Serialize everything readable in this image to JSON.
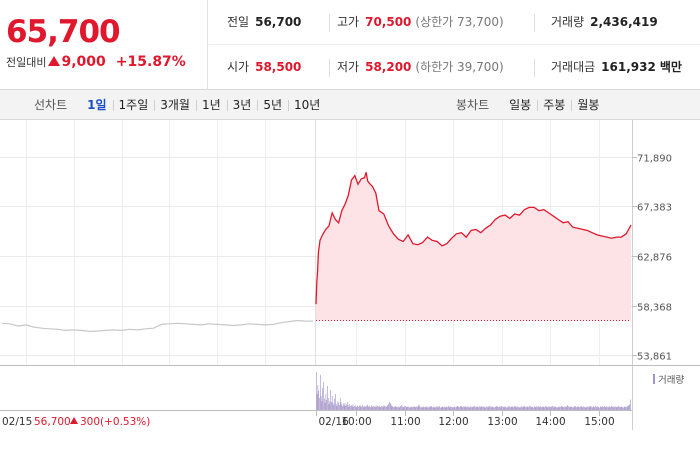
{
  "summary": {
    "current_price": "65,700",
    "change_label": "전일대비",
    "change_amount": "9,000",
    "change_percent": "+15.87%",
    "prev_close_label": "전일",
    "prev_close": "56,700",
    "high_label": "고가",
    "high": "70,500",
    "upper_limit_label": "(상한가 73,700)",
    "volume_label": "거래량",
    "volume": "2,436,419",
    "open_label": "시가",
    "open": "58,500",
    "low_label": "저가",
    "low": "58,200",
    "lower_limit_label": "(하한가 39,700)",
    "value_label": "거래대금",
    "value": "161,932",
    "value_unit": "백만"
  },
  "tabs": {
    "line_label": "선차트",
    "line": [
      "1일",
      "1주일",
      "3개월",
      "1년",
      "3년",
      "5년",
      "10년"
    ],
    "line_active": 0,
    "candle_label": "봉차트",
    "candle": [
      "일봉",
      "주봉",
      "월봉"
    ]
  },
  "colors": {
    "up": "#e0182d",
    "down": "#1a4ec4",
    "prev_day_line": "#c8c8c8",
    "area_fill": "#fde3e5",
    "volume_bar": "#a394c7"
  },
  "chart_data": {
    "type": "line",
    "title": "",
    "y_ticks": [
      "71,890",
      "67,383",
      "62,876",
      "58,368",
      "53,861"
    ],
    "ylim": [
      53861,
      71890
    ],
    "grid": true,
    "base_price": 56700,
    "x_ticks": [
      "02/16",
      "10:00",
      "11:00",
      "12:00",
      "13:00",
      "14:00",
      "15:00"
    ],
    "prev_day_footer": {
      "date": "02/15",
      "price": "56,700",
      "change": "300",
      "change_pct": "(+0.53%)"
    },
    "prev_day_series": {
      "x_minutes": [
        0,
        10,
        20,
        30,
        40,
        50,
        60,
        70,
        80,
        90,
        100,
        110,
        120,
        130,
        140,
        150,
        160,
        170,
        180,
        190,
        200,
        210,
        220,
        230,
        240,
        250,
        260,
        270,
        280,
        290,
        300,
        310,
        320,
        330,
        340,
        350,
        360,
        370,
        380,
        390
      ],
      "values": [
        56750,
        56700,
        56500,
        56600,
        56400,
        56300,
        56250,
        56200,
        56100,
        56150,
        56100,
        56000,
        56050,
        56100,
        56150,
        56100,
        56200,
        56150,
        56250,
        56300,
        56650,
        56700,
        56750,
        56700,
        56650,
        56600,
        56700,
        56650,
        56600,
        56550,
        56600,
        56700,
        56650,
        56600,
        56650,
        56800,
        56900,
        57000,
        56950,
        56950
      ]
    },
    "today_series": {
      "name": "",
      "x_minutes": [
        0,
        1,
        2,
        3,
        5,
        8,
        12,
        16,
        20,
        24,
        28,
        32,
        36,
        40,
        44,
        48,
        52,
        56,
        60,
        62,
        64,
        66,
        70,
        74,
        78,
        84,
        90,
        96,
        102,
        108,
        114,
        120,
        126,
        132,
        138,
        144,
        150,
        156,
        162,
        168,
        174,
        180,
        186,
        192,
        198,
        204,
        210,
        216,
        222,
        228,
        234,
        240,
        246,
        252,
        258,
        264,
        270,
        276,
        282,
        288,
        294,
        300,
        306,
        312,
        318,
        324,
        330,
        336,
        342,
        348,
        354,
        360,
        366,
        372,
        378,
        384,
        390
      ],
      "values": [
        58500,
        60500,
        61500,
        63200,
        64300,
        64800,
        65300,
        65600,
        66800,
        66200,
        65900,
        67000,
        67600,
        68400,
        69800,
        70200,
        69400,
        69900,
        70000,
        70500,
        69700,
        69500,
        69200,
        68600,
        67000,
        66700,
        65600,
        64900,
        64400,
        64200,
        64800,
        64000,
        63900,
        64100,
        64600,
        64300,
        64200,
        63800,
        64000,
        64500,
        64900,
        65000,
        64600,
        65200,
        65300,
        65000,
        65400,
        65700,
        66200,
        66500,
        66600,
        66300,
        66700,
        66600,
        67100,
        67300,
        67300,
        67000,
        67100,
        66800,
        66500,
        66200,
        65900,
        66000,
        65500,
        65400,
        65300,
        65200,
        65000,
        64800,
        64700,
        64600,
        64500,
        64600,
        64600,
        64900,
        65700
      ]
    },
    "volume_legend": "거래량",
    "volume_series": {
      "name": "거래량",
      "values": [
        95,
        40,
        62,
        48,
        30,
        88,
        35,
        22,
        55,
        70,
        28,
        18,
        40,
        25,
        60,
        30,
        15,
        22,
        50,
        20,
        35,
        18,
        12,
        28,
        40,
        15,
        10,
        22,
        18,
        12,
        30,
        20,
        14,
        10,
        16,
        12,
        18,
        10,
        14,
        20,
        12,
        8,
        15,
        10,
        12,
        9,
        14,
        8,
        10,
        12,
        7,
        9,
        11,
        8,
        10,
        13,
        8,
        9,
        12,
        7,
        10,
        8,
        9,
        11,
        14,
        9,
        8,
        10,
        7,
        12,
        9,
        8,
        10,
        9,
        7,
        12,
        8,
        10,
        9,
        11,
        8,
        7,
        10,
        9,
        8,
        12,
        10,
        9,
        8,
        11,
        12,
        16,
        20,
        18,
        14,
        10,
        9,
        8,
        7,
        10,
        9,
        8,
        7,
        9,
        6,
        8,
        10,
        12,
        9,
        8,
        7,
        9,
        10,
        8,
        7,
        9,
        8,
        7,
        6,
        9,
        8,
        7,
        8,
        9,
        8,
        7,
        9,
        8,
        10,
        14,
        9,
        8,
        7,
        6,
        9,
        8,
        7,
        8,
        7,
        9,
        6,
        8,
        7,
        9,
        8,
        10,
        7,
        8,
        6,
        9,
        7,
        8,
        9,
        7,
        8,
        10,
        6,
        7,
        8,
        9,
        7,
        8,
        6,
        9,
        8,
        7,
        10,
        8,
        7,
        9,
        8,
        7,
        6,
        8,
        9,
        7,
        8,
        10,
        9,
        8,
        7,
        9,
        11,
        8,
        7,
        9,
        8,
        10,
        7,
        8,
        9,
        7,
        8,
        6,
        9,
        8,
        7,
        9,
        8,
        10,
        7,
        8,
        9,
        8,
        7,
        9,
        8,
        7,
        10,
        8,
        9,
        7,
        8,
        6,
        9,
        8,
        7,
        9,
        10,
        8,
        7,
        9,
        8,
        7,
        6,
        8,
        9,
        10,
        8,
        7,
        9,
        8,
        7,
        10,
        9,
        8,
        7,
        9,
        8,
        7,
        6,
        9,
        8,
        10,
        7,
        8,
        9,
        8,
        7,
        9,
        10,
        8,
        7,
        9,
        8,
        7,
        6,
        8,
        9,
        7,
        8,
        10,
        9,
        8,
        7,
        9,
        8,
        7,
        10,
        8,
        9,
        7,
        8,
        6,
        9,
        8,
        7,
        9,
        8,
        10,
        7,
        8,
        9,
        8,
        7,
        9,
        8,
        7,
        10,
        8,
        9,
        7,
        8,
        9,
        8,
        7,
        9,
        10,
        8,
        7,
        9,
        8,
        7,
        6,
        8,
        9,
        7,
        8,
        10,
        9,
        8,
        7,
        9,
        8,
        7,
        10,
        12,
        9,
        8,
        7,
        9,
        8,
        7,
        6,
        9,
        8,
        10,
        7,
        8,
        9,
        8,
        7,
        9,
        10,
        8,
        7,
        9,
        8,
        7,
        6,
        8,
        9,
        7,
        8,
        10,
        9,
        8,
        7,
        9,
        8,
        7,
        10,
        8,
        9,
        7,
        8,
        6,
        9,
        8,
        7,
        9,
        8,
        10,
        7,
        8,
        9,
        8,
        7,
        9,
        8,
        7,
        10,
        8,
        9,
        7,
        8,
        9,
        8,
        7,
        9,
        10,
        8,
        7,
        9,
        8,
        7,
        6,
        8,
        9,
        7,
        8,
        10,
        9,
        12,
        14,
        26
      ]
    }
  }
}
